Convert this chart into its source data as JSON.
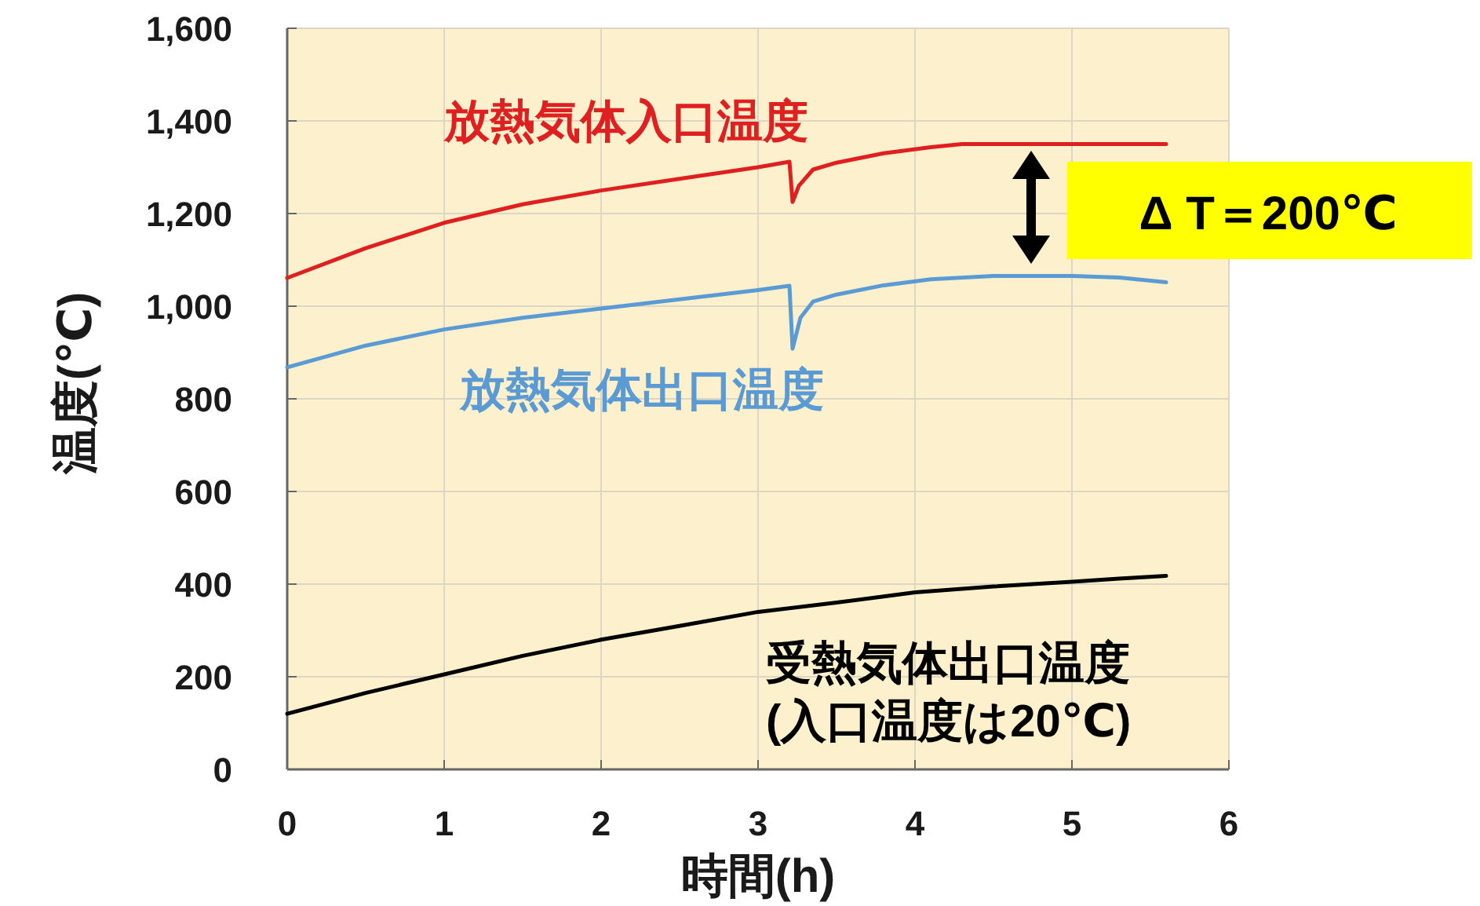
{
  "chart_data": {
    "type": "line",
    "xlabel": "時間(h)",
    "ylabel": "温度(℃)",
    "xlim": [
      0,
      6
    ],
    "xticks": [
      0,
      1,
      2,
      3,
      4,
      5,
      6
    ],
    "ylim": [
      0,
      1600
    ],
    "yticks": [
      0,
      200,
      400,
      600,
      800,
      {
        "value": 1000,
        "label": "1,000"
      },
      {
        "value": 1200,
        "label": "1,200"
      },
      {
        "value": 1400,
        "label": "1,400"
      },
      {
        "value": 1600,
        "label": "1,600"
      }
    ],
    "grid": true,
    "marker": "none",
    "line_style": "solid",
    "series": [
      {
        "name": "放熱気体入口温度",
        "color": "#e02020",
        "x": [
          0,
          0.5,
          1,
          1.5,
          2,
          2.5,
          3,
          3.2,
          3.22,
          3.26,
          3.35,
          3.5,
          3.8,
          4.1,
          4.3,
          4.8,
          5.2,
          5.6
        ],
        "values": [
          1061,
          1125,
          1180,
          1220,
          1250,
          1275,
          1300,
          1312,
          1225,
          1260,
          1295,
          1310,
          1330,
          1343,
          1350,
          1350,
          1350,
          1350
        ]
      },
      {
        "name": "放熱気体出口温度",
        "color": "#5b9bd5",
        "x": [
          0,
          0.5,
          1,
          1.5,
          2,
          2.5,
          3,
          3.2,
          3.22,
          3.27,
          3.35,
          3.5,
          3.8,
          4.1,
          4.5,
          5,
          5.3,
          5.6
        ],
        "values": [
          868,
          915,
          950,
          975,
          995,
          1015,
          1035,
          1044,
          908,
          975,
          1010,
          1025,
          1045,
          1058,
          1065,
          1065,
          1062,
          1052
        ]
      },
      {
        "name": "受熱気体出口温度",
        "color": "#000000",
        "x": [
          0,
          0.5,
          1,
          1.5,
          2,
          2.5,
          3,
          3.5,
          4,
          4.5,
          5,
          5.3,
          5.6
        ],
        "values": [
          120,
          165,
          205,
          245,
          280,
          310,
          340,
          360,
          382,
          395,
          405,
          412,
          418
        ]
      }
    ],
    "annotations": [
      "(入口温度は20℃)",
      "Δ T＝200℃"
    ]
  }
}
